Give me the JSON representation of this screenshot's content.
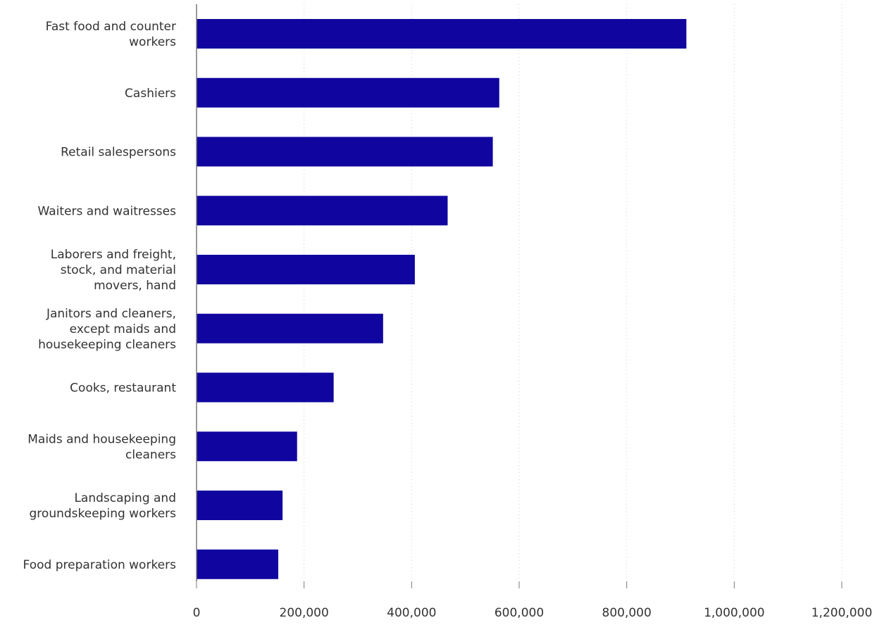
{
  "chart_data": {
    "type": "bar",
    "orientation": "horizontal",
    "title": "",
    "xlabel": "",
    "ylabel": "",
    "categories": [
      [
        "Fast food and counter",
        "workers"
      ],
      [
        "Cashiers"
      ],
      [
        "Retail salespersons"
      ],
      [
        "Waiters and waitresses"
      ],
      [
        "Laborers and freight,",
        "stock, and material",
        "movers, hand"
      ],
      [
        "Janitors and cleaners,",
        "except maids and",
        "housekeeping cleaners"
      ],
      [
        "Cooks, restaurant"
      ],
      [
        "Maids and housekeeping",
        "cleaners"
      ],
      [
        "Landscaping and",
        "groundskeeping workers"
      ],
      [
        "Food preparation workers"
      ]
    ],
    "values": [
      911000,
      563000,
      551000,
      467000,
      406000,
      347000,
      255000,
      187000,
      160000,
      152000
    ],
    "xlim": [
      0,
      1200000
    ],
    "x_ticks": [
      0,
      200000,
      400000,
      600000,
      800000,
      1000000,
      1200000
    ],
    "x_tick_labels": [
      "0",
      "200,000",
      "400,000",
      "600,000",
      "800,000",
      "1,000,000",
      "1,200,000"
    ],
    "grid": true,
    "legend": "none",
    "bar_color": "#10069f"
  }
}
